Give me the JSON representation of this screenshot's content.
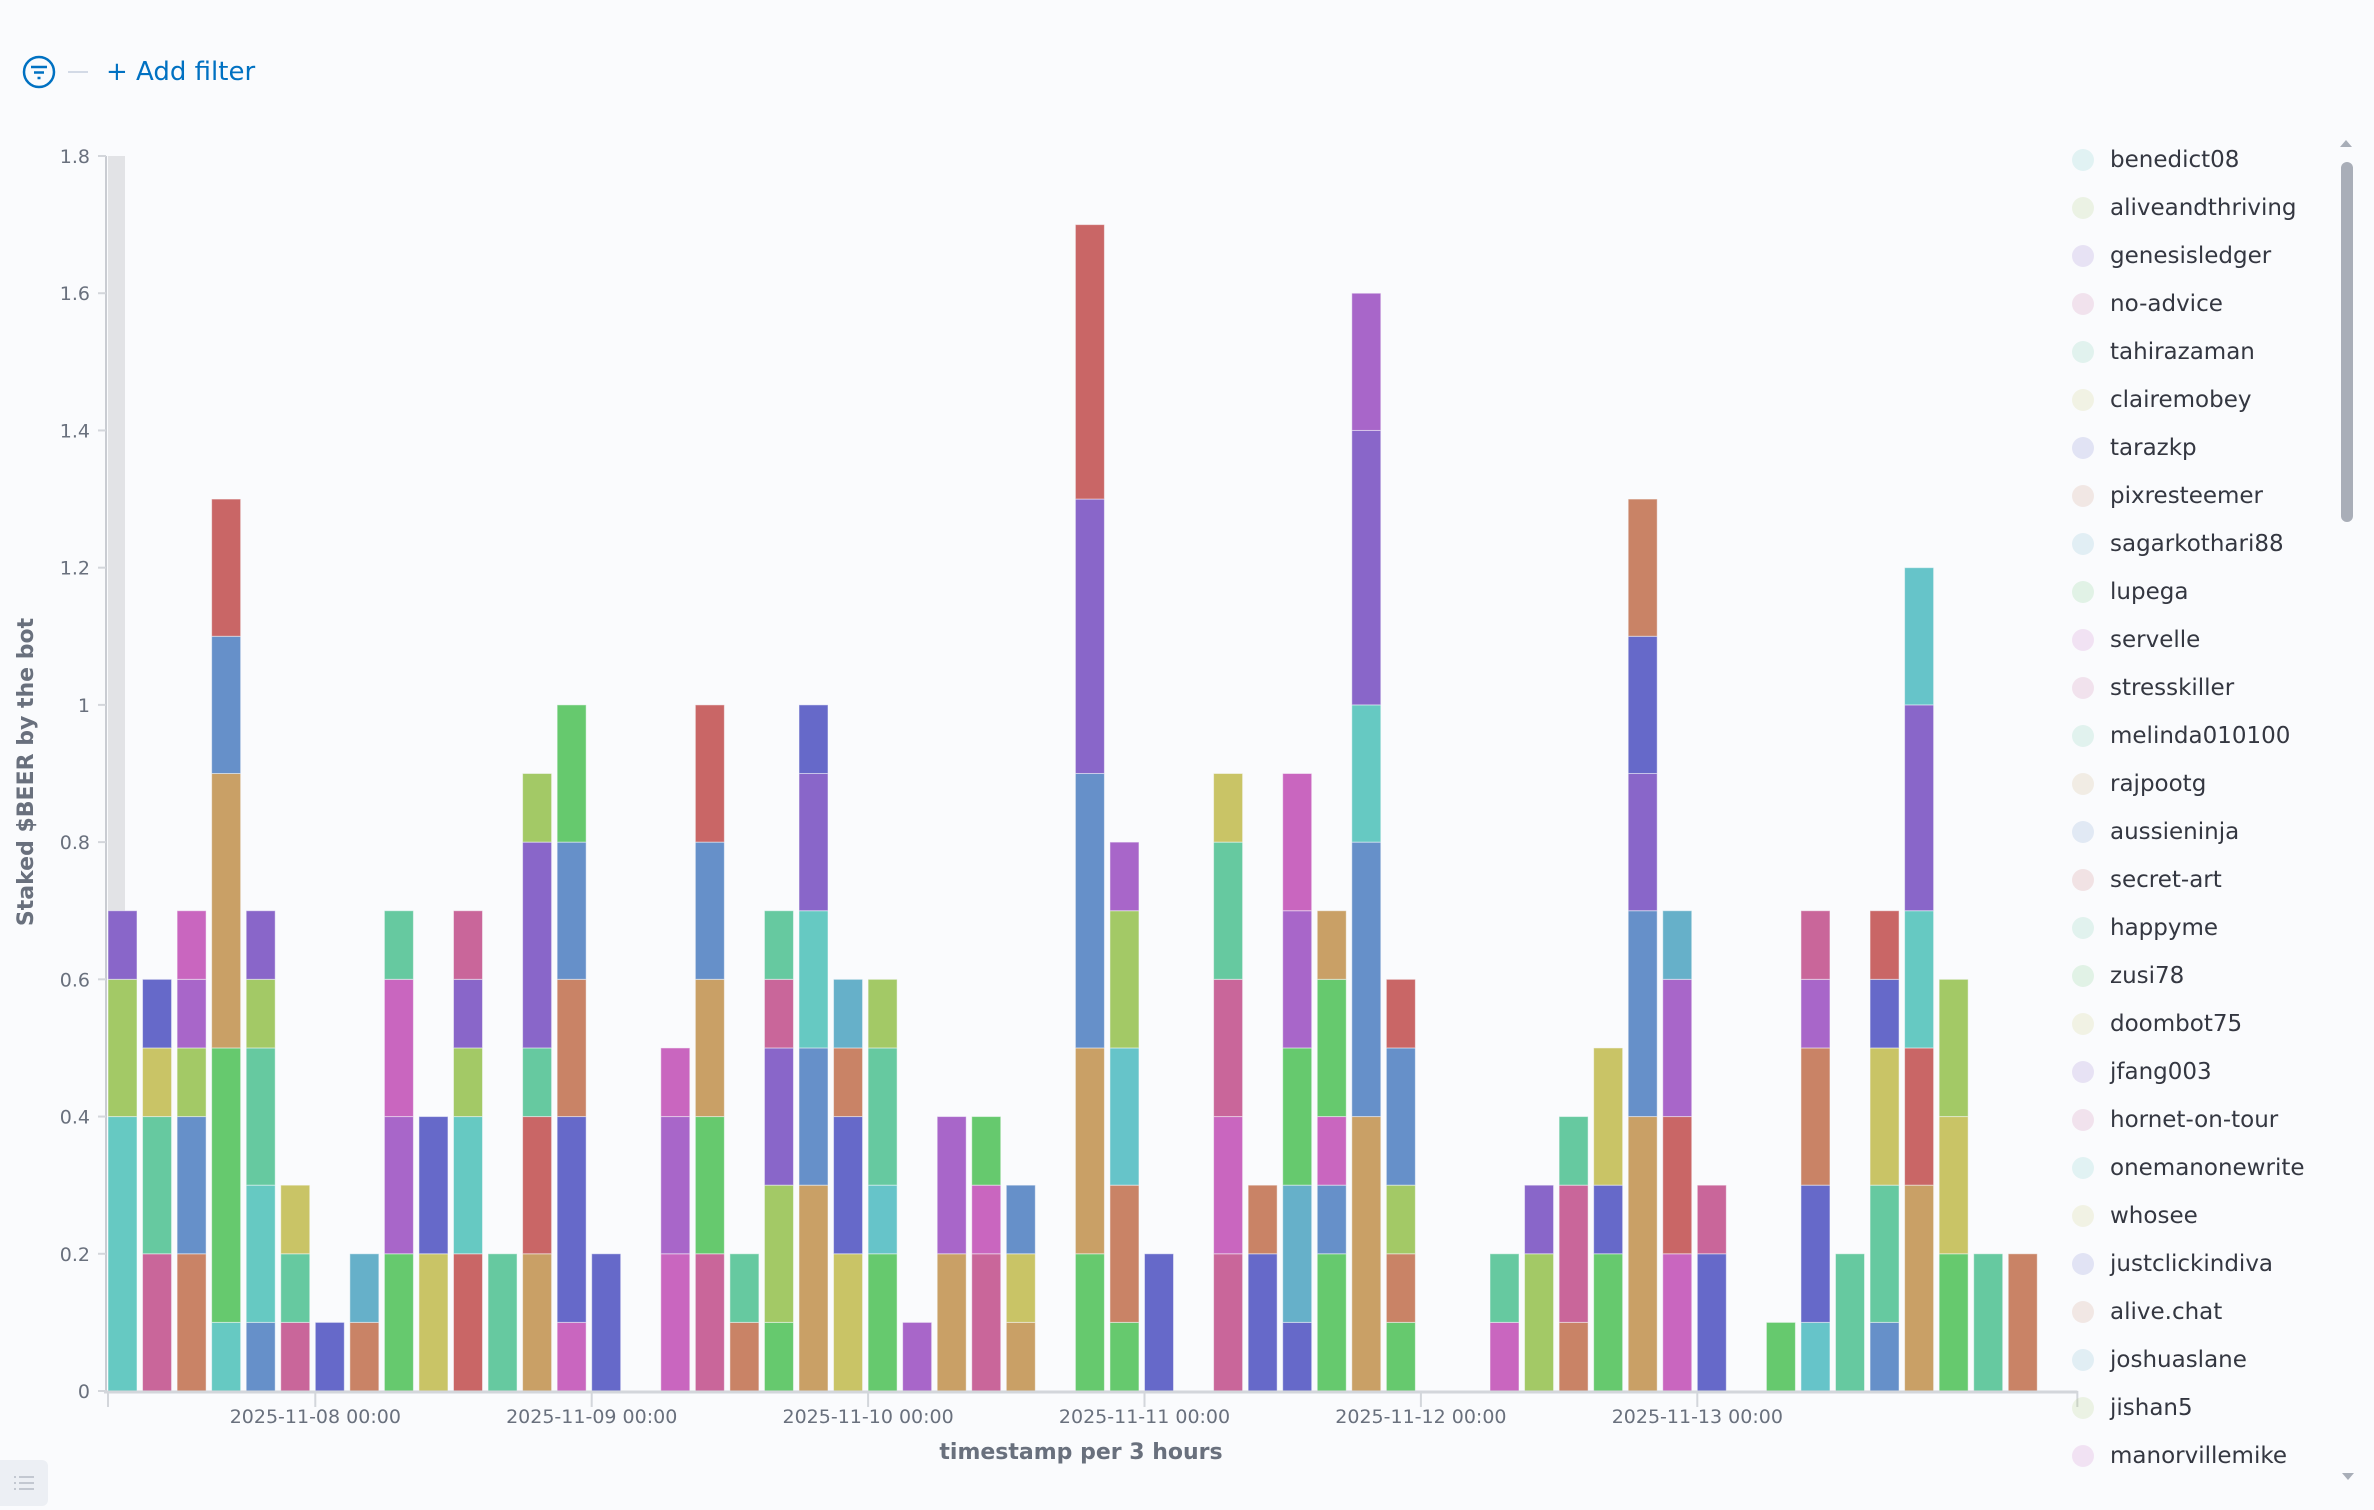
{
  "filter_bar": {
    "add_filter_label": "+ Add filter"
  },
  "colors": {
    "te": "#66c9c2",
    "pk": "#c9669a",
    "or": "#c98366",
    "gr": "#66c96e",
    "bl": "#6690c9",
    "tn": "#c9a066",
    "in": "#6669c9",
    "lb": "#66b0c9",
    "yg": "#a3c966",
    "ye": "#c9c466",
    "rd": "#c96666",
    "gt": "#66c9a0",
    "mg": "#c966bf",
    "pu": "#8966c9",
    "vi": "#a866c9",
    "cy": "#66c4c9"
  },
  "chart_data": {
    "type": "bar",
    "stacked": true,
    "xlabel": "timestamp per 3 hours",
    "ylabel": "Staked $BEER by the bot",
    "ylim": [
      0,
      1.8
    ],
    "y_ticks": [
      {
        "v": 0,
        "label": "0"
      },
      {
        "v": 0.2,
        "label": "0.2"
      },
      {
        "v": 0.4,
        "label": "0.4"
      },
      {
        "v": 0.6,
        "label": "0.6"
      },
      {
        "v": 0.8,
        "label": "0.8"
      },
      {
        "v": 1,
        "label": "1"
      },
      {
        "v": 1.2,
        "label": "1.2"
      },
      {
        "v": 1.4,
        "label": "1.4"
      },
      {
        "v": 1.6,
        "label": "1.6"
      },
      {
        "v": 1.8,
        "label": "1.8"
      }
    ],
    "x_start": "2025-11-07 06:00",
    "x_end": "2025-11-14 09:00",
    "interval_hours": 3,
    "x_ticks": [
      "2025-11-08 00:00",
      "2025-11-09 00:00",
      "2025-11-10 00:00",
      "2025-11-11 00:00",
      "2025-11-12 00:00",
      "2025-11-13 00:00"
    ],
    "bars": [
      {
        "t": "2025-11-07 06:00",
        "s": [
          [
            0.4,
            "te"
          ],
          [
            0.2,
            "yg"
          ],
          [
            0.1,
            "pu"
          ]
        ]
      },
      {
        "t": "2025-11-07 09:00",
        "s": [
          [
            0.2,
            "pk"
          ],
          [
            0.2,
            "gt"
          ],
          [
            0.1,
            "ye"
          ],
          [
            0.1,
            "in"
          ]
        ]
      },
      {
        "t": "2025-11-07 12:00",
        "s": [
          [
            0.2,
            "or"
          ],
          [
            0.2,
            "bl"
          ],
          [
            0.1,
            "yg"
          ],
          [
            0.1,
            "vi"
          ],
          [
            0.1,
            "mg"
          ]
        ]
      },
      {
        "t": "2025-11-07 15:00",
        "s": [
          [
            0.1,
            "te"
          ],
          [
            0.4,
            "gr"
          ],
          [
            0.4,
            "tn"
          ],
          [
            0.2,
            "bl"
          ],
          [
            0.2,
            "rd"
          ]
        ]
      },
      {
        "t": "2025-11-07 18:00",
        "s": [
          [
            0.1,
            "bl"
          ],
          [
            0.2,
            "te"
          ],
          [
            0.2,
            "gt"
          ],
          [
            0.1,
            "yg"
          ],
          [
            0.1,
            "pu"
          ]
        ]
      },
      {
        "t": "2025-11-07 21:00",
        "s": [
          [
            0.1,
            "pk"
          ],
          [
            0.1,
            "gt"
          ],
          [
            0.1,
            "ye"
          ]
        ]
      },
      {
        "t": "2025-11-08 00:00",
        "s": [
          [
            0.1,
            "in"
          ]
        ]
      },
      {
        "t": "2025-11-08 03:00",
        "s": [
          [
            0.1,
            "or"
          ],
          [
            0.1,
            "lb"
          ]
        ]
      },
      {
        "t": "2025-11-08 06:00",
        "s": [
          [
            0.2,
            "gr"
          ],
          [
            0.2,
            "vi"
          ],
          [
            0.2,
            "mg"
          ],
          [
            0.1,
            "gt"
          ]
        ]
      },
      {
        "t": "2025-11-08 09:00",
        "s": [
          [
            0.2,
            "ye"
          ],
          [
            0.2,
            "in"
          ]
        ]
      },
      {
        "t": "2025-11-08 12:00",
        "s": [
          [
            0.2,
            "rd"
          ],
          [
            0.2,
            "te"
          ],
          [
            0.1,
            "yg"
          ],
          [
            0.1,
            "pu"
          ],
          [
            0.1,
            "pk"
          ]
        ]
      },
      {
        "t": "2025-11-08 15:00",
        "s": [
          [
            0.2,
            "gt"
          ]
        ]
      },
      {
        "t": "2025-11-08 18:00",
        "s": [
          [
            0.2,
            "tn"
          ],
          [
            0.2,
            "rd"
          ],
          [
            0.1,
            "gt"
          ],
          [
            0.3,
            "pu"
          ],
          [
            0.1,
            "yg"
          ]
        ]
      },
      {
        "t": "2025-11-08 21:00",
        "s": [
          [
            0.1,
            "mg"
          ],
          [
            0.3,
            "in"
          ],
          [
            0.2,
            "or"
          ],
          [
            0.2,
            "bl"
          ],
          [
            0.2,
            "gr"
          ]
        ]
      },
      {
        "t": "2025-11-09 00:00",
        "s": [
          [
            0.2,
            "in"
          ]
        ]
      },
      {
        "t": "2025-11-09 06:00",
        "s": [
          [
            0.2,
            "mg"
          ],
          [
            0.2,
            "vi"
          ],
          [
            0.1,
            "mg"
          ]
        ]
      },
      {
        "t": "2025-11-09 09:00",
        "s": [
          [
            0.2,
            "pk"
          ],
          [
            0.2,
            "gr"
          ],
          [
            0.2,
            "tn"
          ],
          [
            0.2,
            "bl"
          ],
          [
            0.2,
            "rd"
          ]
        ]
      },
      {
        "t": "2025-11-09 12:00",
        "s": [
          [
            0.1,
            "or"
          ],
          [
            0.1,
            "gt"
          ]
        ]
      },
      {
        "t": "2025-11-09 15:00",
        "s": [
          [
            0.1,
            "gr"
          ],
          [
            0.2,
            "yg"
          ],
          [
            0.2,
            "pu"
          ],
          [
            0.1,
            "pk"
          ],
          [
            0.1,
            "gt"
          ]
        ]
      },
      {
        "t": "2025-11-09 18:00",
        "s": [
          [
            0.3,
            "tn"
          ],
          [
            0.2,
            "bl"
          ],
          [
            0.2,
            "te"
          ],
          [
            0.2,
            "pu"
          ],
          [
            0.1,
            "in"
          ]
        ]
      },
      {
        "t": "2025-11-09 21:00",
        "s": [
          [
            0.2,
            "ye"
          ],
          [
            0.2,
            "in"
          ],
          [
            0.1,
            "or"
          ],
          [
            0.1,
            "lb"
          ]
        ]
      },
      {
        "t": "2025-11-10 00:00",
        "s": [
          [
            0.2,
            "gr"
          ],
          [
            0.1,
            "cy"
          ],
          [
            0.2,
            "gt"
          ],
          [
            0.1,
            "yg"
          ]
        ]
      },
      {
        "t": "2025-11-10 03:00",
        "s": [
          [
            0.1,
            "vi"
          ]
        ]
      },
      {
        "t": "2025-11-10 06:00",
        "s": [
          [
            0.2,
            "tn"
          ],
          [
            0.2,
            "vi"
          ]
        ]
      },
      {
        "t": "2025-11-10 09:00",
        "s": [
          [
            0.2,
            "pk"
          ],
          [
            0.1,
            "mg"
          ],
          [
            0.1,
            "gr"
          ]
        ]
      },
      {
        "t": "2025-11-10 12:00",
        "s": [
          [
            0.1,
            "tn"
          ],
          [
            0.1,
            "ye"
          ],
          [
            0.1,
            "bl"
          ]
        ]
      },
      {
        "t": "2025-11-10 18:00",
        "s": [
          [
            0.2,
            "gr"
          ],
          [
            0.3,
            "tn"
          ],
          [
            0.4,
            "bl"
          ],
          [
            0.4,
            "pu"
          ],
          [
            0.4,
            "rd"
          ]
        ]
      },
      {
        "t": "2025-11-10 21:00",
        "s": [
          [
            0.1,
            "gr"
          ],
          [
            0.2,
            "or"
          ],
          [
            0.2,
            "cy"
          ],
          [
            0.2,
            "yg"
          ],
          [
            0.1,
            "vi"
          ]
        ]
      },
      {
        "t": "2025-11-11 00:00",
        "s": [
          [
            0.2,
            "in"
          ]
        ]
      },
      {
        "t": "2025-11-11 06:00",
        "s": [
          [
            0.2,
            "pk"
          ],
          [
            0.2,
            "mg"
          ],
          [
            0.2,
            "pk"
          ],
          [
            0.2,
            "gt"
          ],
          [
            0.1,
            "ye"
          ]
        ]
      },
      {
        "t": "2025-11-11 09:00",
        "s": [
          [
            0.2,
            "in"
          ],
          [
            0.1,
            "or"
          ]
        ]
      },
      {
        "t": "2025-11-11 12:00",
        "s": [
          [
            0.1,
            "in"
          ],
          [
            0.2,
            "lb"
          ],
          [
            0.2,
            "gr"
          ],
          [
            0.2,
            "vi"
          ],
          [
            0.2,
            "mg"
          ]
        ]
      },
      {
        "t": "2025-11-11 15:00",
        "s": [
          [
            0.2,
            "gr"
          ],
          [
            0.1,
            "bl"
          ],
          [
            0.1,
            "mg"
          ],
          [
            0.2,
            "gr"
          ],
          [
            0.1,
            "tn"
          ]
        ]
      },
      {
        "t": "2025-11-11 18:00",
        "s": [
          [
            0.4,
            "tn"
          ],
          [
            0.4,
            "bl"
          ],
          [
            0.2,
            "te"
          ],
          [
            0.4,
            "pu"
          ],
          [
            0.2,
            "vi"
          ]
        ]
      },
      {
        "t": "2025-11-11 21:00",
        "s": [
          [
            0.1,
            "gr"
          ],
          [
            0.1,
            "or"
          ],
          [
            0.1,
            "yg"
          ],
          [
            0.2,
            "bl"
          ],
          [
            0.1,
            "rd"
          ]
        ]
      },
      {
        "t": "2025-11-12 06:00",
        "s": [
          [
            0.1,
            "mg"
          ],
          [
            0.1,
            "gt"
          ]
        ]
      },
      {
        "t": "2025-11-12 09:00",
        "s": [
          [
            0.2,
            "yg"
          ],
          [
            0.1,
            "pu"
          ]
        ]
      },
      {
        "t": "2025-11-12 12:00",
        "s": [
          [
            0.1,
            "or"
          ],
          [
            0.2,
            "pk"
          ],
          [
            0.1,
            "gt"
          ]
        ]
      },
      {
        "t": "2025-11-12 15:00",
        "s": [
          [
            0.2,
            "gr"
          ],
          [
            0.1,
            "in"
          ],
          [
            0.2,
            "ye"
          ]
        ]
      },
      {
        "t": "2025-11-12 18:00",
        "s": [
          [
            0.4,
            "tn"
          ],
          [
            0.3,
            "bl"
          ],
          [
            0.2,
            "pu"
          ],
          [
            0.2,
            "in"
          ],
          [
            0.2,
            "or"
          ]
        ]
      },
      {
        "t": "2025-11-12 21:00",
        "s": [
          [
            0.2,
            "mg"
          ],
          [
            0.2,
            "rd"
          ],
          [
            0.2,
            "vi"
          ],
          [
            0.1,
            "lb"
          ]
        ]
      },
      {
        "t": "2025-11-13 00:00",
        "s": [
          [
            0.2,
            "in"
          ],
          [
            0.1,
            "pk"
          ]
        ]
      },
      {
        "t": "2025-11-13 06:00",
        "s": [
          [
            0.1,
            "gr"
          ]
        ]
      },
      {
        "t": "2025-11-13 09:00",
        "s": [
          [
            0.1,
            "cy"
          ],
          [
            0.2,
            "in"
          ],
          [
            0.2,
            "or"
          ],
          [
            0.1,
            "vi"
          ],
          [
            0.1,
            "pk"
          ]
        ]
      },
      {
        "t": "2025-11-13 12:00",
        "s": [
          [
            0.2,
            "gt"
          ]
        ]
      },
      {
        "t": "2025-11-13 15:00",
        "s": [
          [
            0.1,
            "bl"
          ],
          [
            0.2,
            "gt"
          ],
          [
            0.2,
            "ye"
          ],
          [
            0.1,
            "in"
          ],
          [
            0.1,
            "rd"
          ]
        ]
      },
      {
        "t": "2025-11-13 18:00",
        "s": [
          [
            0.3,
            "tn"
          ],
          [
            0.2,
            "rd"
          ],
          [
            0.2,
            "te"
          ],
          [
            0.3,
            "pu"
          ],
          [
            0.2,
            "cy"
          ]
        ]
      },
      {
        "t": "2025-11-13 21:00",
        "s": [
          [
            0.2,
            "gr"
          ],
          [
            0.2,
            "ye"
          ],
          [
            0.2,
            "yg"
          ]
        ]
      },
      {
        "t": "2025-11-14 00:00",
        "s": [
          [
            0.2,
            "gt"
          ]
        ]
      },
      {
        "t": "2025-11-14 03:00",
        "s": [
          [
            0.2,
            "or"
          ]
        ]
      }
    ],
    "legend_position": "right",
    "legend": [
      {
        "name": "benedict08",
        "c": "te"
      },
      {
        "name": "aliveandthriving",
        "c": "yg"
      },
      {
        "name": "genesisledger",
        "c": "pu"
      },
      {
        "name": "no-advice",
        "c": "pk"
      },
      {
        "name": "tahirazaman",
        "c": "gt"
      },
      {
        "name": "clairemobey",
        "c": "ye"
      },
      {
        "name": "tarazkp",
        "c": "in"
      },
      {
        "name": "pixresteemer",
        "c": "or"
      },
      {
        "name": "sagarkothari88",
        "c": "lb"
      },
      {
        "name": "lupega",
        "c": "gr"
      },
      {
        "name": "servelle",
        "c": "mg"
      },
      {
        "name": "stresskiller",
        "c": "pk"
      },
      {
        "name": "melinda010100",
        "c": "gt"
      },
      {
        "name": "rajpootg",
        "c": "tn"
      },
      {
        "name": "aussieninja",
        "c": "bl"
      },
      {
        "name": "secret-art",
        "c": "rd"
      },
      {
        "name": "happyme",
        "c": "gt"
      },
      {
        "name": "zusi78",
        "c": "gr"
      },
      {
        "name": "doombot75",
        "c": "ye"
      },
      {
        "name": "jfang003",
        "c": "pu"
      },
      {
        "name": "hornet-on-tour",
        "c": "pk"
      },
      {
        "name": "onemanonewrite",
        "c": "te"
      },
      {
        "name": "whosee",
        "c": "ye"
      },
      {
        "name": "justclickindiva",
        "c": "in"
      },
      {
        "name": "alive.chat",
        "c": "or"
      },
      {
        "name": "joshuaslane",
        "c": "lb"
      },
      {
        "name": "jishan5",
        "c": "yg"
      },
      {
        "name": "manorvillemike",
        "c": "mg"
      }
    ]
  }
}
